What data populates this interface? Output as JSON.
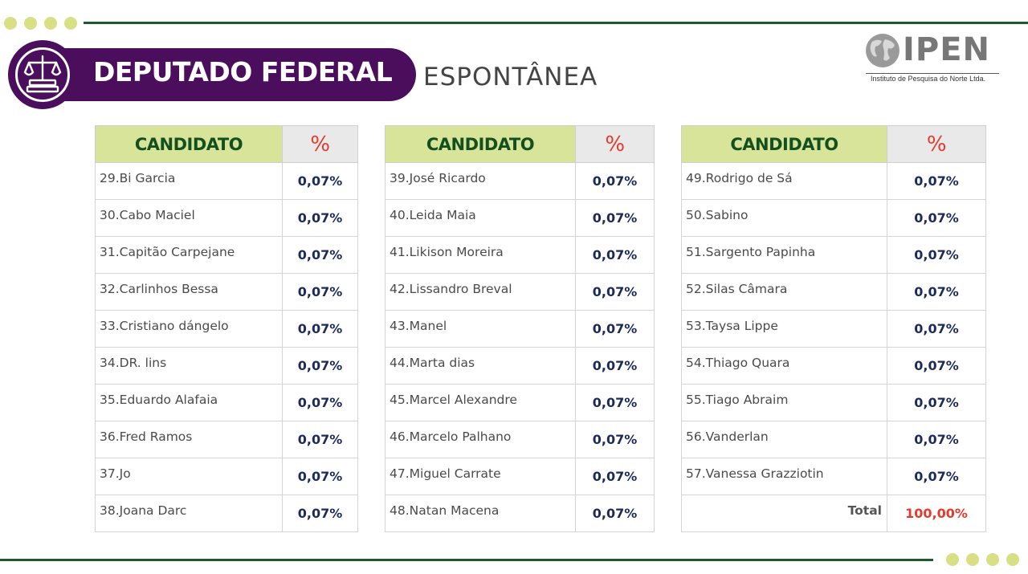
{
  "header": {
    "title": "DEPUTADO FEDERAL",
    "subtitle": "ESPONTÂNEA"
  },
  "logo": {
    "name": "IPEN",
    "tagline": "Instituto de Pesquisa do Norte Ltda."
  },
  "table_headers": {
    "candidate": "CANDIDATO",
    "percent": "%"
  },
  "tables": [
    {
      "rows": [
        {
          "name": "29.Bi Garcia",
          "value": "0,07%"
        },
        {
          "name": "30.Cabo Maciel",
          "value": "0,07%"
        },
        {
          "name": "31.Capitão Carpejane",
          "value": "0,07%"
        },
        {
          "name": "32.Carlinhos Bessa",
          "value": "0,07%"
        },
        {
          "name": "33.Cristiano dángelo",
          "value": "0,07%"
        },
        {
          "name": "34.DR. lins",
          "value": "0,07%"
        },
        {
          "name": "35.Eduardo Alafaia",
          "value": "0,07%"
        },
        {
          "name": "36.Fred Ramos",
          "value": "0,07%"
        },
        {
          "name": "37.Jo",
          "value": "0,07%"
        },
        {
          "name": "38.Joana Darc",
          "value": "0,07%"
        }
      ]
    },
    {
      "rows": [
        {
          "name": "39.José Ricardo",
          "value": "0,07%"
        },
        {
          "name": "40.Leida Maia",
          "value": "0,07%"
        },
        {
          "name": "41.Likison Moreira",
          "value": "0,07%"
        },
        {
          "name": "42.Lissandro Breval",
          "value": "0,07%"
        },
        {
          "name": "43.Manel",
          "value": "0,07%"
        },
        {
          "name": "44.Marta dias",
          "value": "0,07%"
        },
        {
          "name": "45.Marcel Alexandre",
          "value": "0,07%"
        },
        {
          "name": "46.Marcelo Palhano",
          "value": "0,07%"
        },
        {
          "name": "47.Miguel Carrate",
          "value": "0,07%"
        },
        {
          "name": "48.Natan Macena",
          "value": "0,07%"
        }
      ]
    },
    {
      "rows": [
        {
          "name": "49.Rodrigo de Sá",
          "value": "0,07%"
        },
        {
          "name": "50.Sabino",
          "value": "0,07%"
        },
        {
          "name": "51.Sargento Papinha",
          "value": "0,07%"
        },
        {
          "name": "52.Silas Câmara",
          "value": "0,07%"
        },
        {
          "name": "53.Taysa Lippe",
          "value": "0,07%"
        },
        {
          "name": "54.Thiago Quara",
          "value": "0,07%"
        },
        {
          "name": "55.Tiago Abraim",
          "value": "0,07%"
        },
        {
          "name": "56.Vanderlan",
          "value": "0,07%"
        },
        {
          "name": "57.Vanessa Grazziotin",
          "value": "0,07%"
        }
      ],
      "total": {
        "label": "Total",
        "value": "100,00%"
      }
    }
  ],
  "colors": {
    "purple": "#4a0e5c",
    "header_green": "#d8e49a",
    "header_text": "#14501f",
    "percent_red": "#e33b2e",
    "value_navy": "#1c2b5a",
    "rule_green": "#1f5a2c",
    "dot_yellow": "#d9df84"
  },
  "icons": {
    "badge": "scales-of-justice-icon",
    "logo": "globe-icon"
  }
}
